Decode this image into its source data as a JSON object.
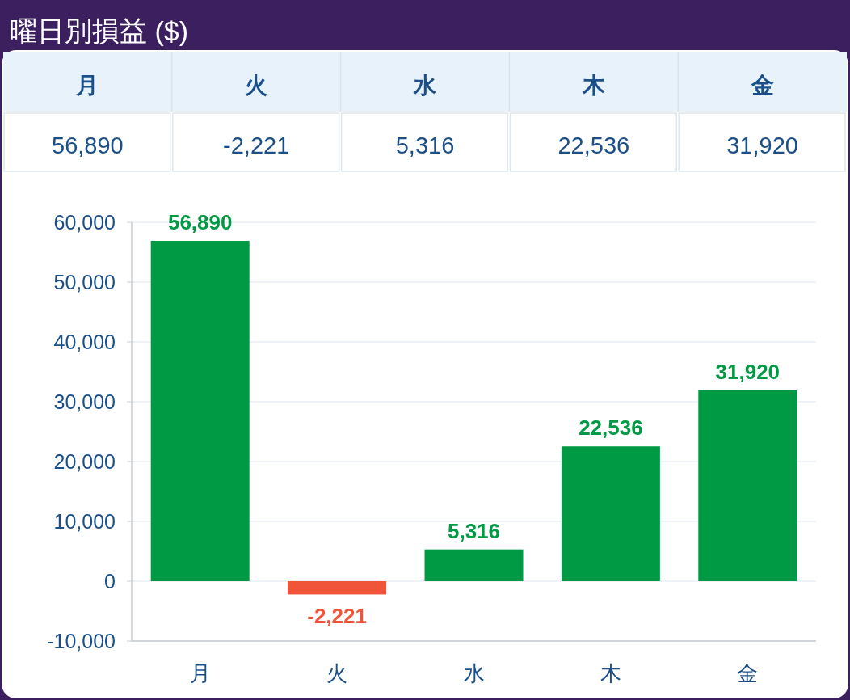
{
  "chart_data": {
    "type": "bar",
    "title": "曜日別損益 ($)",
    "categories": [
      "月",
      "火",
      "水",
      "木",
      "金"
    ],
    "values": [
      56890,
      -2221,
      5316,
      22536,
      31920
    ],
    "colors": [
      "#009944",
      "#f0553a",
      "#009944",
      "#009944",
      "#009944"
    ],
    "ylim": [
      -10000,
      60000
    ],
    "yticks": [
      {
        "value": -10000,
        "label": "-10,000"
      },
      0,
      {
        "value": 10000,
        "label": "10,000"
      },
      {
        "value": 20000,
        "label": "20,000"
      },
      {
        "value": 30000,
        "label": "30,000"
      },
      {
        "value": 40000,
        "label": "40,000"
      },
      {
        "value": 50000,
        "label": "50,000"
      },
      {
        "value": 60000,
        "label": "60,000"
      }
    ],
    "value_labels": [
      "56,890",
      "-2,221",
      "5,316",
      "22,536",
      "31,920"
    ],
    "grid": "y"
  }
}
